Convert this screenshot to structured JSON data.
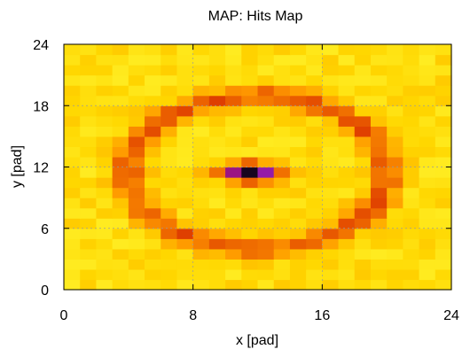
{
  "chart_data": {
    "type": "heatmap",
    "title": "MAP: Hits Map",
    "xlabel": "x [pad]",
    "ylabel": "y [pad]",
    "xlim": [
      0,
      24
    ],
    "ylim": [
      0,
      24
    ],
    "xticks": [
      0,
      8,
      16,
      24
    ],
    "yticks": [
      0,
      6,
      12,
      18,
      24
    ],
    "grid": true,
    "nx": 24,
    "ny": 24,
    "ring": {
      "center": [
        12,
        11.5
      ],
      "radius_x": 8.0,
      "radius_y": 7.5
    },
    "hotspot": {
      "center": [
        11.5,
        11.5
      ],
      "width_pads": 4,
      "height_pads": 2
    },
    "colormap": [
      "#ffff40",
      "#ffd700",
      "#ff9a00",
      "#e04000",
      "#b00020",
      "#9020c0",
      "#000000"
    ],
    "background_level": 0.08
  }
}
